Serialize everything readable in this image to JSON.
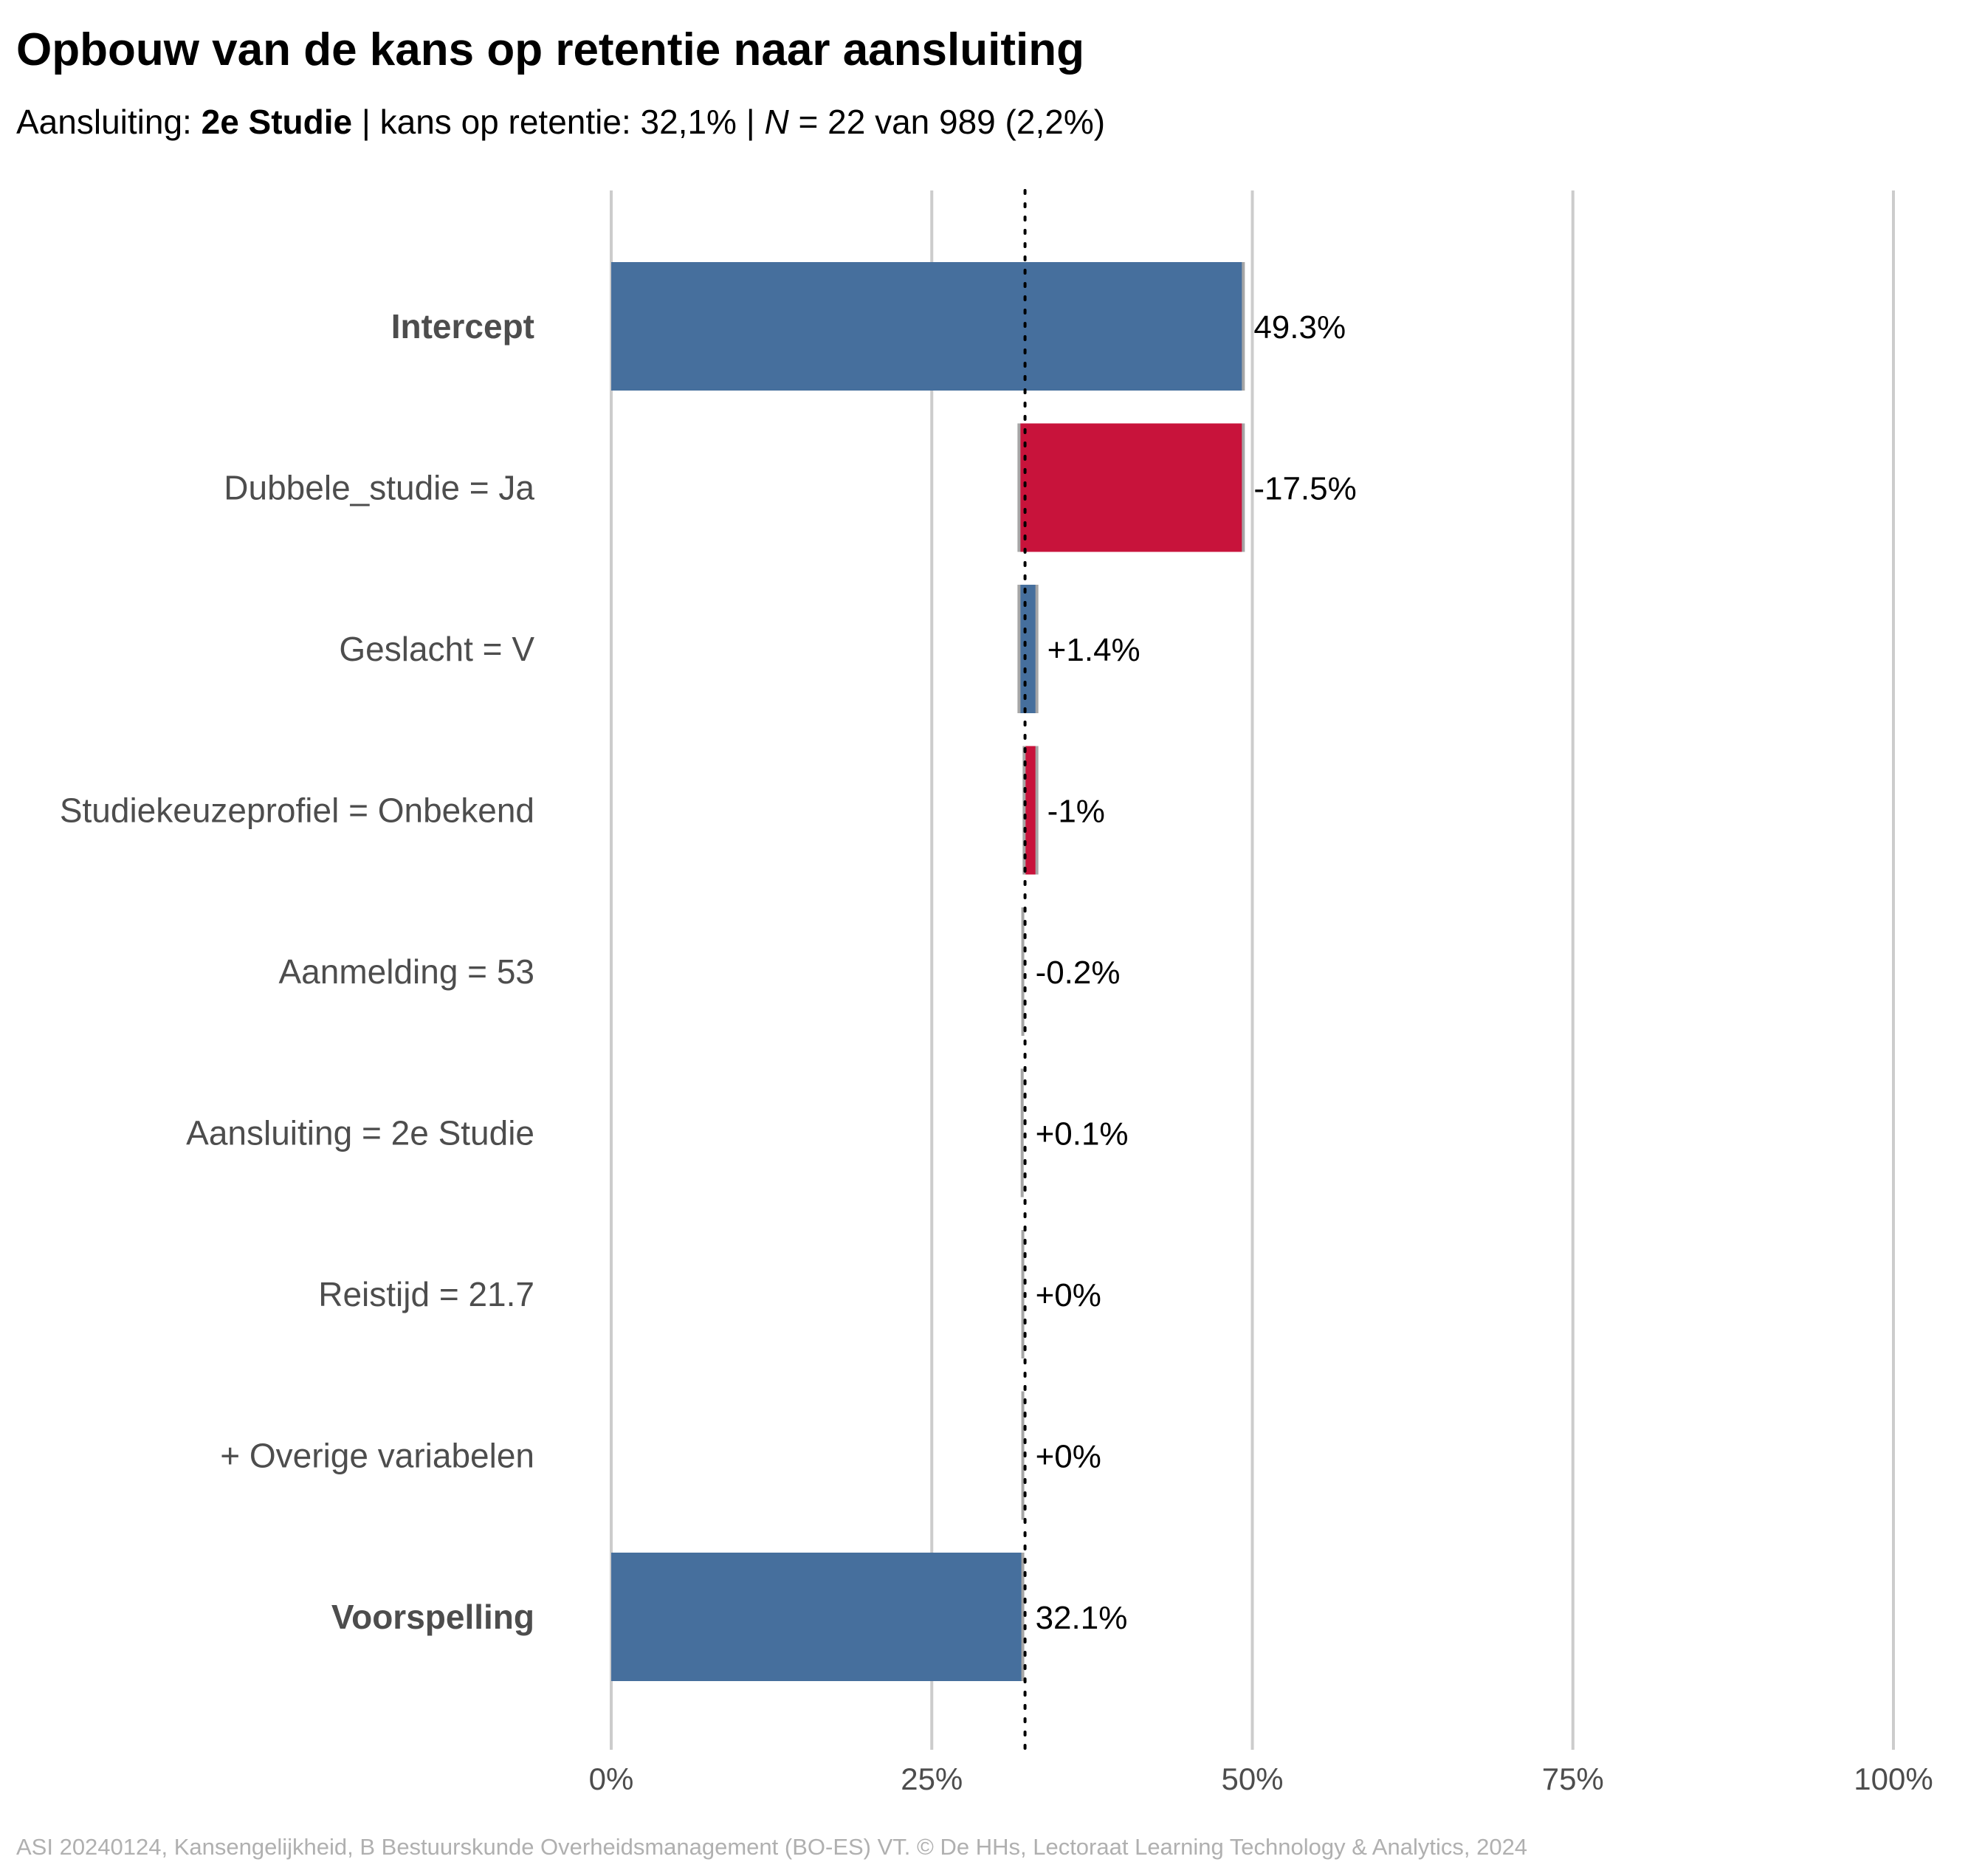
{
  "title": "Opbouw van de kans op retentie naar aansluiting",
  "subtitle": {
    "prefix": "Aansluiting: ",
    "group": "2e Studie",
    "middle": " | kans op retentie: 32,1% | ",
    "n_symbol": "N",
    "suffix": " = 22 van 989 (2,2%)"
  },
  "caption": "ASI 20240124, Kansengelijkheid, B Bestuurskunde Overheidsmanagement (BO-ES) VT. © De HHs, Lectoraat Learning Technology & Analytics, 2024",
  "chart_data": {
    "type": "bar",
    "subtype": "waterfall",
    "orientation": "horizontal",
    "xlim": [
      0,
      100
    ],
    "x_unit": "%",
    "grid": true,
    "reference_line": 32.1,
    "ticks": [
      {
        "value": 0,
        "label": "0%"
      },
      {
        "value": 25,
        "label": "25%"
      },
      {
        "value": 50,
        "label": "50%"
      },
      {
        "value": 75,
        "label": "75%"
      },
      {
        "value": 100,
        "label": "100%"
      }
    ],
    "colors": {
      "positive": "#466f9d",
      "negative": "#c8133b",
      "neutral": "#a6a6a6",
      "total": "#466f9d"
    },
    "rows": [
      {
        "category": "Intercept",
        "kind": "total",
        "value": 49.3,
        "label": "49.3%"
      },
      {
        "category": "Dubbele_studie = Ja",
        "kind": "delta",
        "value": -17.5,
        "label": "-17.5%"
      },
      {
        "category": "Geslacht = V",
        "kind": "delta",
        "value": 1.4,
        "label": "+1.4%"
      },
      {
        "category": "Studiekeuzeprofiel = Onbekend",
        "kind": "delta",
        "value": -1.0,
        "label": "-1%"
      },
      {
        "category": "Aanmelding = 53",
        "kind": "delta",
        "value": -0.2,
        "label": "-0.2%"
      },
      {
        "category": "Aansluiting = 2e Studie",
        "kind": "delta",
        "value": 0.1,
        "label": "+0.1%"
      },
      {
        "category": "Reistijd = 21.7",
        "kind": "delta",
        "value": 0.0,
        "label": "+0%"
      },
      {
        "category": "+ Overige variabelen",
        "kind": "delta",
        "value": 0.0,
        "label": "+0%"
      },
      {
        "category": "Voorspelling",
        "kind": "total",
        "value": 32.1,
        "label": "32.1%"
      }
    ]
  }
}
